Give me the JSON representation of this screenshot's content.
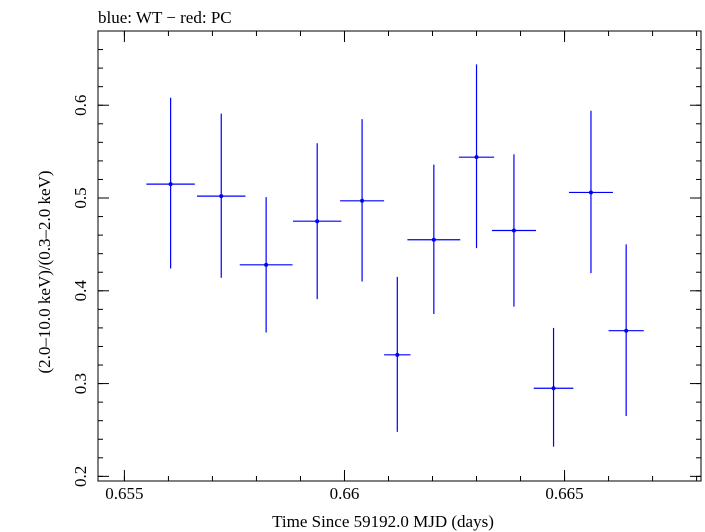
{
  "chart_data": {
    "type": "scatter",
    "title": "blue: WT − red: PC",
    "xlabel": "Time Since 59192.0 MJD (days)",
    "ylabel": "(2.0–10.0 keV)/(0.3–2.0 keV)",
    "xlim": [
      0.6544,
      0.6681
    ],
    "ylim": [
      0.195,
      0.68
    ],
    "xticks": [
      0.655,
      0.66,
      0.665
    ],
    "xtick_labels": [
      "0.655",
      "0.66",
      "0.665"
    ],
    "yticks": [
      0.2,
      0.3,
      0.4,
      0.5,
      0.6
    ],
    "ytick_labels": [
      "0.2",
      "0.3",
      "0.4",
      "0.5",
      "0.6"
    ],
    "grid": false,
    "series": [
      {
        "color": "#0000ff",
        "points": [
          {
            "x": 0.65605,
            "xerr": 0.00055,
            "y": 0.515,
            "yerr_low": 0.091,
            "yerr_high": 0.093
          },
          {
            "x": 0.6572,
            "xerr": 0.00055,
            "y": 0.502,
            "yerr_low": 0.088,
            "yerr_high": 0.089
          },
          {
            "x": 0.65822,
            "xerr": 0.0006,
            "y": 0.428,
            "yerr_low": 0.073,
            "yerr_high": 0.073
          },
          {
            "x": 0.65938,
            "xerr": 0.00055,
            "y": 0.475,
            "yerr_low": 0.084,
            "yerr_high": 0.084
          },
          {
            "x": 0.6604,
            "xerr": 0.0005,
            "y": 0.497,
            "yerr_low": 0.087,
            "yerr_high": 0.088
          },
          {
            "x": 0.6612,
            "xerr": 0.0003,
            "y": 0.331,
            "yerr_low": 0.083,
            "yerr_high": 0.084
          },
          {
            "x": 0.66203,
            "xerr": 0.0006,
            "y": 0.455,
            "yerr_low": 0.08,
            "yerr_high": 0.081
          },
          {
            "x": 0.663,
            "xerr": 0.0004,
            "y": 0.544,
            "yerr_low": 0.098,
            "yerr_high": 0.1
          },
          {
            "x": 0.66385,
            "xerr": 0.0005,
            "y": 0.465,
            "yerr_low": 0.082,
            "yerr_high": 0.082
          },
          {
            "x": 0.66475,
            "xerr": 0.00045,
            "y": 0.295,
            "yerr_low": 0.063,
            "yerr_high": 0.065
          },
          {
            "x": 0.6656,
            "xerr": 0.0005,
            "y": 0.506,
            "yerr_low": 0.087,
            "yerr_high": 0.088
          },
          {
            "x": 0.6664,
            "xerr": 0.0004,
            "y": 0.357,
            "yerr_low": 0.092,
            "yerr_high": 0.093
          }
        ]
      }
    ]
  }
}
